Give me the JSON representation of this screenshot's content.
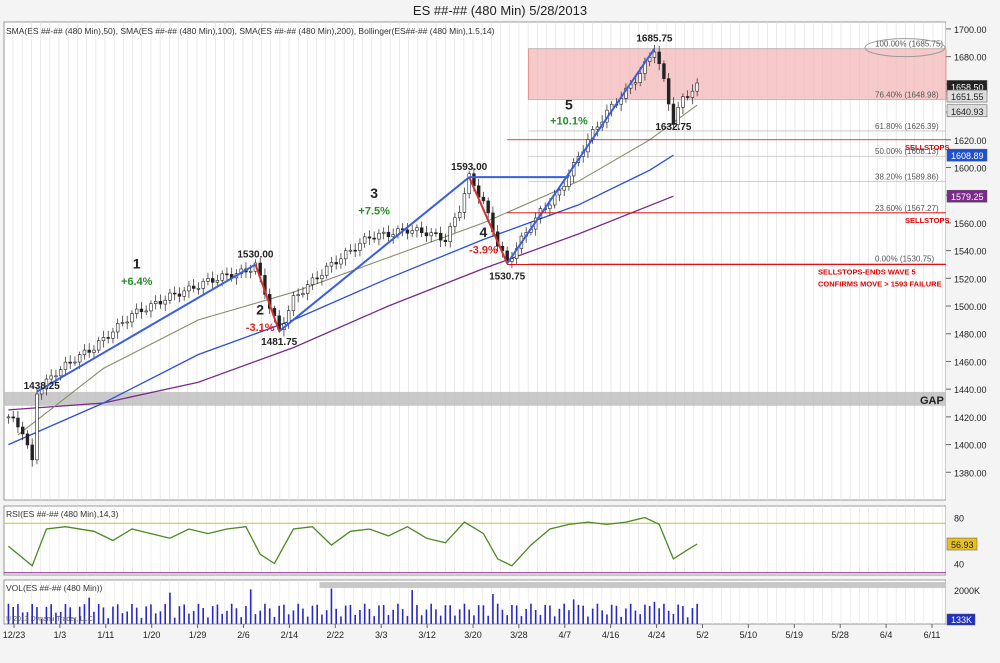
{
  "window": {
    "title": "ES ##-## (480 Min)  5/28/2013",
    "close_icon": "close-icon"
  },
  "chart_data": [
    {
      "type": "line",
      "panel": "price",
      "legend_text": "SMA(ES ##-## (480 Min),50), SMA(ES ##-## (480 Min),100), SMA(ES ##-## (480 Min),200), Bollinger(ES##-## (480 Min),1.5,14)",
      "ylim": [
        1360,
        1705
      ],
      "yticks": [
        1380,
        1400,
        1420,
        1440,
        1460,
        1480,
        1500,
        1520,
        1540,
        1560,
        1580,
        1600,
        1620,
        1640,
        1660,
        1680,
        1700
      ],
      "ytick_labels": [
        "1380.00",
        "1400.00",
        "1420.00",
        "1440.00",
        "1460.00",
        "1480.00",
        "1500.00",
        "1520.00",
        "1540.00",
        "1560.00",
        "1580.00",
        "1600.00",
        "1620.00",
        "1640.00",
        "1660.00",
        "1680.00",
        "1700.00"
      ],
      "x_dates": [
        "12/23",
        "1/3",
        "1/11",
        "1/20",
        "1/29",
        "2/6",
        "2/14",
        "2/22",
        "3/3",
        "3/12",
        "3/20",
        "3/28",
        "4/7",
        "4/16",
        "4/24",
        "5/2",
        "5/10",
        "5/19",
        "5/28",
        "6/4",
        "6/11"
      ],
      "price_path": [
        [
          0,
          1420
        ],
        [
          3,
          1410
        ],
        [
          5,
          1387
        ],
        [
          6,
          1438.25
        ],
        [
          10,
          1452
        ],
        [
          14,
          1462
        ],
        [
          18,
          1470
        ],
        [
          22,
          1482
        ],
        [
          26,
          1494
        ],
        [
          30,
          1500
        ],
        [
          34,
          1507
        ],
        [
          38,
          1512
        ],
        [
          42,
          1518
        ],
        [
          46,
          1522
        ],
        [
          50,
          1525
        ],
        [
          52,
          1530
        ],
        [
          55,
          1500
        ],
        [
          57,
          1481.75
        ],
        [
          60,
          1505
        ],
        [
          64,
          1518
        ],
        [
          68,
          1530
        ],
        [
          72,
          1540
        ],
        [
          76,
          1550
        ],
        [
          80,
          1552
        ],
        [
          84,
          1555
        ],
        [
          88,
          1553
        ],
        [
          92,
          1548
        ],
        [
          95,
          1570
        ],
        [
          97,
          1593
        ],
        [
          100,
          1575
        ],
        [
          103,
          1545
        ],
        [
          105,
          1530.75
        ],
        [
          108,
          1548
        ],
        [
          112,
          1568
        ],
        [
          116,
          1582
        ],
        [
          118,
          1595
        ],
        [
          122,
          1620
        ],
        [
          126,
          1640
        ],
        [
          130,
          1655
        ],
        [
          133,
          1668
        ],
        [
          136,
          1685.75
        ],
        [
          138,
          1662
        ],
        [
          140,
          1632.75
        ],
        [
          142,
          1650
        ],
        [
          145,
          1658.5
        ]
      ],
      "sma50": [
        [
          2,
          1407
        ],
        [
          20,
          1455
        ],
        [
          40,
          1490
        ],
        [
          60,
          1510
        ],
        [
          80,
          1535
        ],
        [
          100,
          1560
        ],
        [
          120,
          1590
        ],
        [
          135,
          1620
        ],
        [
          145,
          1645
        ]
      ],
      "sma100": [
        [
          0,
          1400
        ],
        [
          20,
          1430
        ],
        [
          40,
          1465
        ],
        [
          60,
          1490
        ],
        [
          80,
          1520
        ],
        [
          100,
          1548
        ],
        [
          120,
          1573
        ],
        [
          135,
          1598
        ],
        [
          140,
          1608.89
        ]
      ],
      "sma200": [
        [
          0,
          1425
        ],
        [
          20,
          1430
        ],
        [
          40,
          1445
        ],
        [
          60,
          1470
        ],
        [
          80,
          1500
        ],
        [
          100,
          1527
        ],
        [
          120,
          1552
        ],
        [
          140,
          1579.25
        ]
      ],
      "wave_lines": [
        {
          "label": "1",
          "from": [
            6,
            1438.25
          ],
          "to": [
            52,
            1530
          ]
        },
        {
          "label": "2",
          "from": [
            52,
            1530
          ],
          "to": [
            57,
            1481.75
          ]
        },
        {
          "label": "3",
          "from": [
            57,
            1481.75
          ],
          "to": [
            97,
            1593
          ]
        },
        {
          "label": "4",
          "from": [
            97,
            1593
          ],
          "to": [
            105,
            1530.75
          ]
        },
        {
          "label": "5",
          "from": [
            105,
            1530.75
          ],
          "to": [
            136,
            1685.75
          ]
        }
      ],
      "wave_labels": [
        {
          "text": "1",
          "x": 27,
          "y": 1527,
          "color": "#222222",
          "size": 14
        },
        {
          "text": "+6.4%",
          "x": 27,
          "y": 1515,
          "color": "#2e8b2e",
          "size": 11
        },
        {
          "text": "2",
          "x": 53,
          "y": 1494,
          "color": "#222222",
          "size": 14
        },
        {
          "text": "-3.1%",
          "x": 53,
          "y": 1482,
          "color": "#e02020",
          "size": 11
        },
        {
          "text": "3",
          "x": 77,
          "y": 1578,
          "color": "#222222",
          "size": 14
        },
        {
          "text": "+7.5%",
          "x": 77,
          "y": 1566,
          "color": "#2e8b2e",
          "size": 11
        },
        {
          "text": "4",
          "x": 100,
          "y": 1550,
          "color": "#222222",
          "size": 14
        },
        {
          "text": "-3.9%",
          "x": 100,
          "y": 1538,
          "color": "#e02020",
          "size": 11
        },
        {
          "text": "5",
          "x": 118,
          "y": 1642,
          "color": "#222222",
          "size": 14
        },
        {
          "text": "+10.1%",
          "x": 118,
          "y": 1631,
          "color": "#2e8b2e",
          "size": 11
        }
      ],
      "price_labels": [
        {
          "text": "1438.25",
          "x": 7,
          "y": 1440
        },
        {
          "text": "1530.00",
          "x": 52,
          "y": 1535
        },
        {
          "text": "1481.75",
          "x": 57,
          "y": 1472
        },
        {
          "text": "1593.00",
          "x": 97,
          "y": 1598
        },
        {
          "text": "1530.75",
          "x": 105,
          "y": 1519
        },
        {
          "text": "1685.75",
          "x": 136,
          "y": 1691
        },
        {
          "text": "1632.75",
          "x": 140,
          "y": 1627
        }
      ],
      "fib_levels": [
        {
          "label": "100.00% (1685.75)",
          "value": 1685.75
        },
        {
          "label": "76.40% (1648.98)",
          "value": 1648.98
        },
        {
          "label": "61.80% (1626.39)",
          "value": 1626.39
        },
        {
          "label": "50.00% (1608.13)",
          "value": 1608.13
        },
        {
          "label": "38.20% (1589.86)",
          "value": 1589.86
        },
        {
          "label": "23.60% (1567.27)",
          "value": 1567.27
        },
        {
          "label": "0.00% (1530.75)",
          "value": 1530.75
        }
      ],
      "resistance_zone": [
        1648.98,
        1685.75
      ],
      "gap_zone": {
        "label": "GAP",
        "range": [
          1428,
          1438
        ]
      },
      "annotations": [
        {
          "text": "SELLSTOPS",
          "value": 1620
        },
        {
          "text": "SELLSTOPS",
          "value": 1567.27
        },
        {
          "text": "SELLSTOPS-ENDS WAVE 5",
          "value": 1530
        },
        {
          "text": "CONFIRMS MOVE > 1593 FAILURE",
          "value": 1530
        }
      ],
      "price_tags": [
        {
          "text": "1658.50",
          "value": 1658.5,
          "bg": "#222222",
          "fg": "#ffffff"
        },
        {
          "text": "1651.55",
          "value": 1651.55,
          "bg": "#dddddd",
          "fg": "#222222"
        },
        {
          "text": "1640.93",
          "value": 1640.93,
          "bg": "#dddddd",
          "fg": "#222222"
        },
        {
          "text": "1608.89",
          "value": 1608.89,
          "bg": "#2050d0",
          "fg": "#ffffff"
        },
        {
          "text": "1579.25",
          "value": 1579.25,
          "bg": "#7a2a8a",
          "fg": "#ffffff"
        }
      ],
      "colors": {
        "wave": "#3a5fe0",
        "wave_down": "#d83030",
        "sma50": "#8a8a70",
        "sma100": "#2a50d8",
        "sma200": "#7a2a8a",
        "zone": "#f3b8b8",
        "fib": "#c0c0c0",
        "annotation": "#e00000"
      }
    },
    {
      "type": "line",
      "panel": "rsi",
      "legend_text": "RSI(ES ##-## (480 Min),14,3)",
      "ylim": [
        30,
        90
      ],
      "yticks": [
        40,
        80
      ],
      "ytick_labels": [
        "40",
        "80"
      ],
      "current_value_label": "56.93",
      "reference_lines": [
        75,
        32
      ],
      "rsi": [
        [
          0,
          55
        ],
        [
          5,
          38
        ],
        [
          8,
          70
        ],
        [
          12,
          72
        ],
        [
          18,
          68
        ],
        [
          22,
          60
        ],
        [
          26,
          70
        ],
        [
          30,
          66
        ],
        [
          34,
          62
        ],
        [
          38,
          70
        ],
        [
          42,
          66
        ],
        [
          46,
          70
        ],
        [
          50,
          72
        ],
        [
          53,
          48
        ],
        [
          56,
          40
        ],
        [
          60,
          70
        ],
        [
          64,
          72
        ],
        [
          68,
          56
        ],
        [
          72,
          68
        ],
        [
          76,
          70
        ],
        [
          80,
          64
        ],
        [
          84,
          72
        ],
        [
          88,
          62
        ],
        [
          92,
          58
        ],
        [
          96,
          76
        ],
        [
          100,
          66
        ],
        [
          103,
          44
        ],
        [
          106,
          38
        ],
        [
          110,
          56
        ],
        [
          114,
          70
        ],
        [
          118,
          74
        ],
        [
          122,
          76
        ],
        [
          126,
          74
        ],
        [
          130,
          76
        ],
        [
          134,
          80
        ],
        [
          137,
          74
        ],
        [
          140,
          44
        ],
        [
          143,
          52
        ],
        [
          145,
          56.93
        ]
      ],
      "colors": {
        "line": "#4a8a20",
        "ref_top": "#c8c820",
        "ref_bottom": "#8a208a"
      }
    },
    {
      "type": "bar",
      "panel": "volume",
      "legend_text": "VOL(ES ##-## (480 Min))",
      "ylim": [
        0,
        2600
      ],
      "yticks": [
        2000
      ],
      "ytick_labels": [
        "2000K"
      ],
      "current_value_label": "133K",
      "copyright": "© 2013 Dynami Trader, LLC",
      "colors": {
        "bar": "#2828c8"
      }
    }
  ]
}
